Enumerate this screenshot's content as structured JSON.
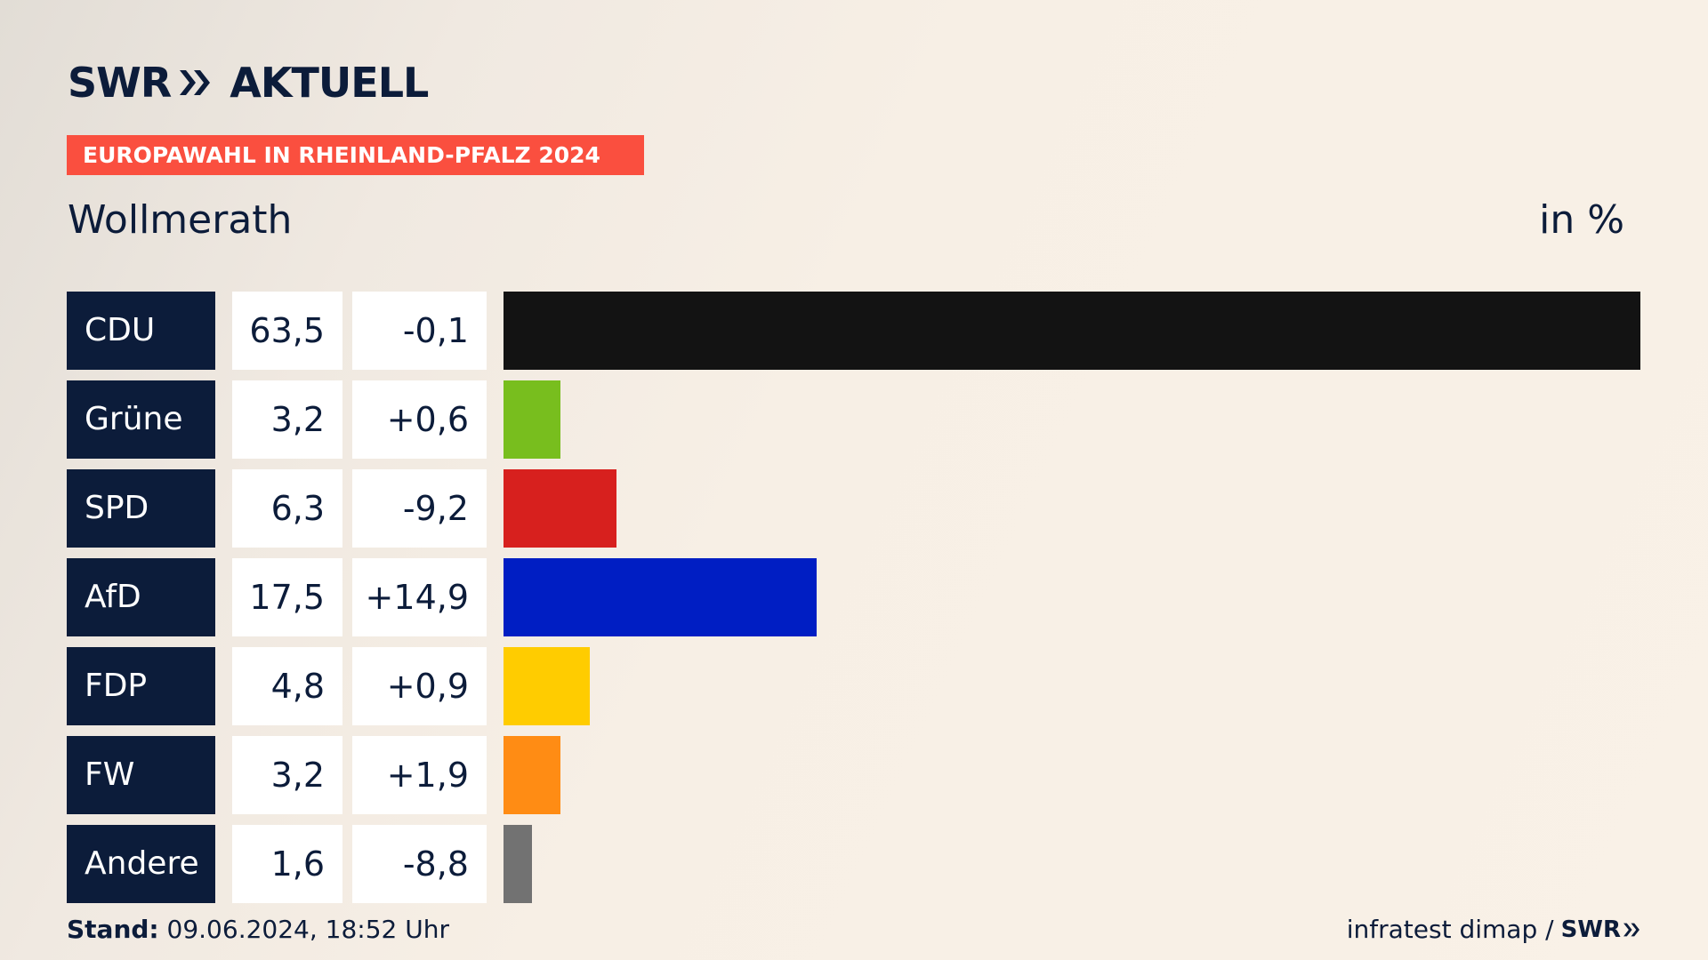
{
  "brand": {
    "logo_text_left": "SWR",
    "logo_text_right": "AKTUELL",
    "logo_icon": "double-chevron-icon",
    "color": "#0c1c3a"
  },
  "badge": {
    "label": "EUROPAWAHL IN RHEINLAND-PFALZ 2024",
    "color": "#fa4f3f"
  },
  "location": "Wollmerath",
  "unit": "in %",
  "chart_data": {
    "type": "bar",
    "orientation": "horizontal",
    "categories": [
      "CDU",
      "Grüne",
      "SPD",
      "AfD",
      "FDP",
      "FW",
      "Andere"
    ],
    "values": [
      63.5,
      3.2,
      6.3,
      17.5,
      4.8,
      3.2,
      1.6
    ],
    "value_labels": [
      "63,5",
      "3,2",
      "6,3",
      "17,5",
      "4,8",
      "3,2",
      "1,6"
    ],
    "change_labels": [
      "-0,1",
      "+0,6",
      "-9,2",
      "+14,9",
      "+0,9",
      "+1,9",
      "-8,8"
    ],
    "colors": [
      "#131313",
      "#78be1e",
      "#d7201e",
      "#001ec3",
      "#ffcc00",
      "#ff8c14",
      "#727272"
    ],
    "xlim": [
      0,
      63.5
    ],
    "grid": false
  },
  "footer": {
    "stand_label": "Stand:",
    "stand_value": "09.06.2024, 18:52 Uhr",
    "source": "infratest dimap /",
    "source_brand": "SWR"
  }
}
